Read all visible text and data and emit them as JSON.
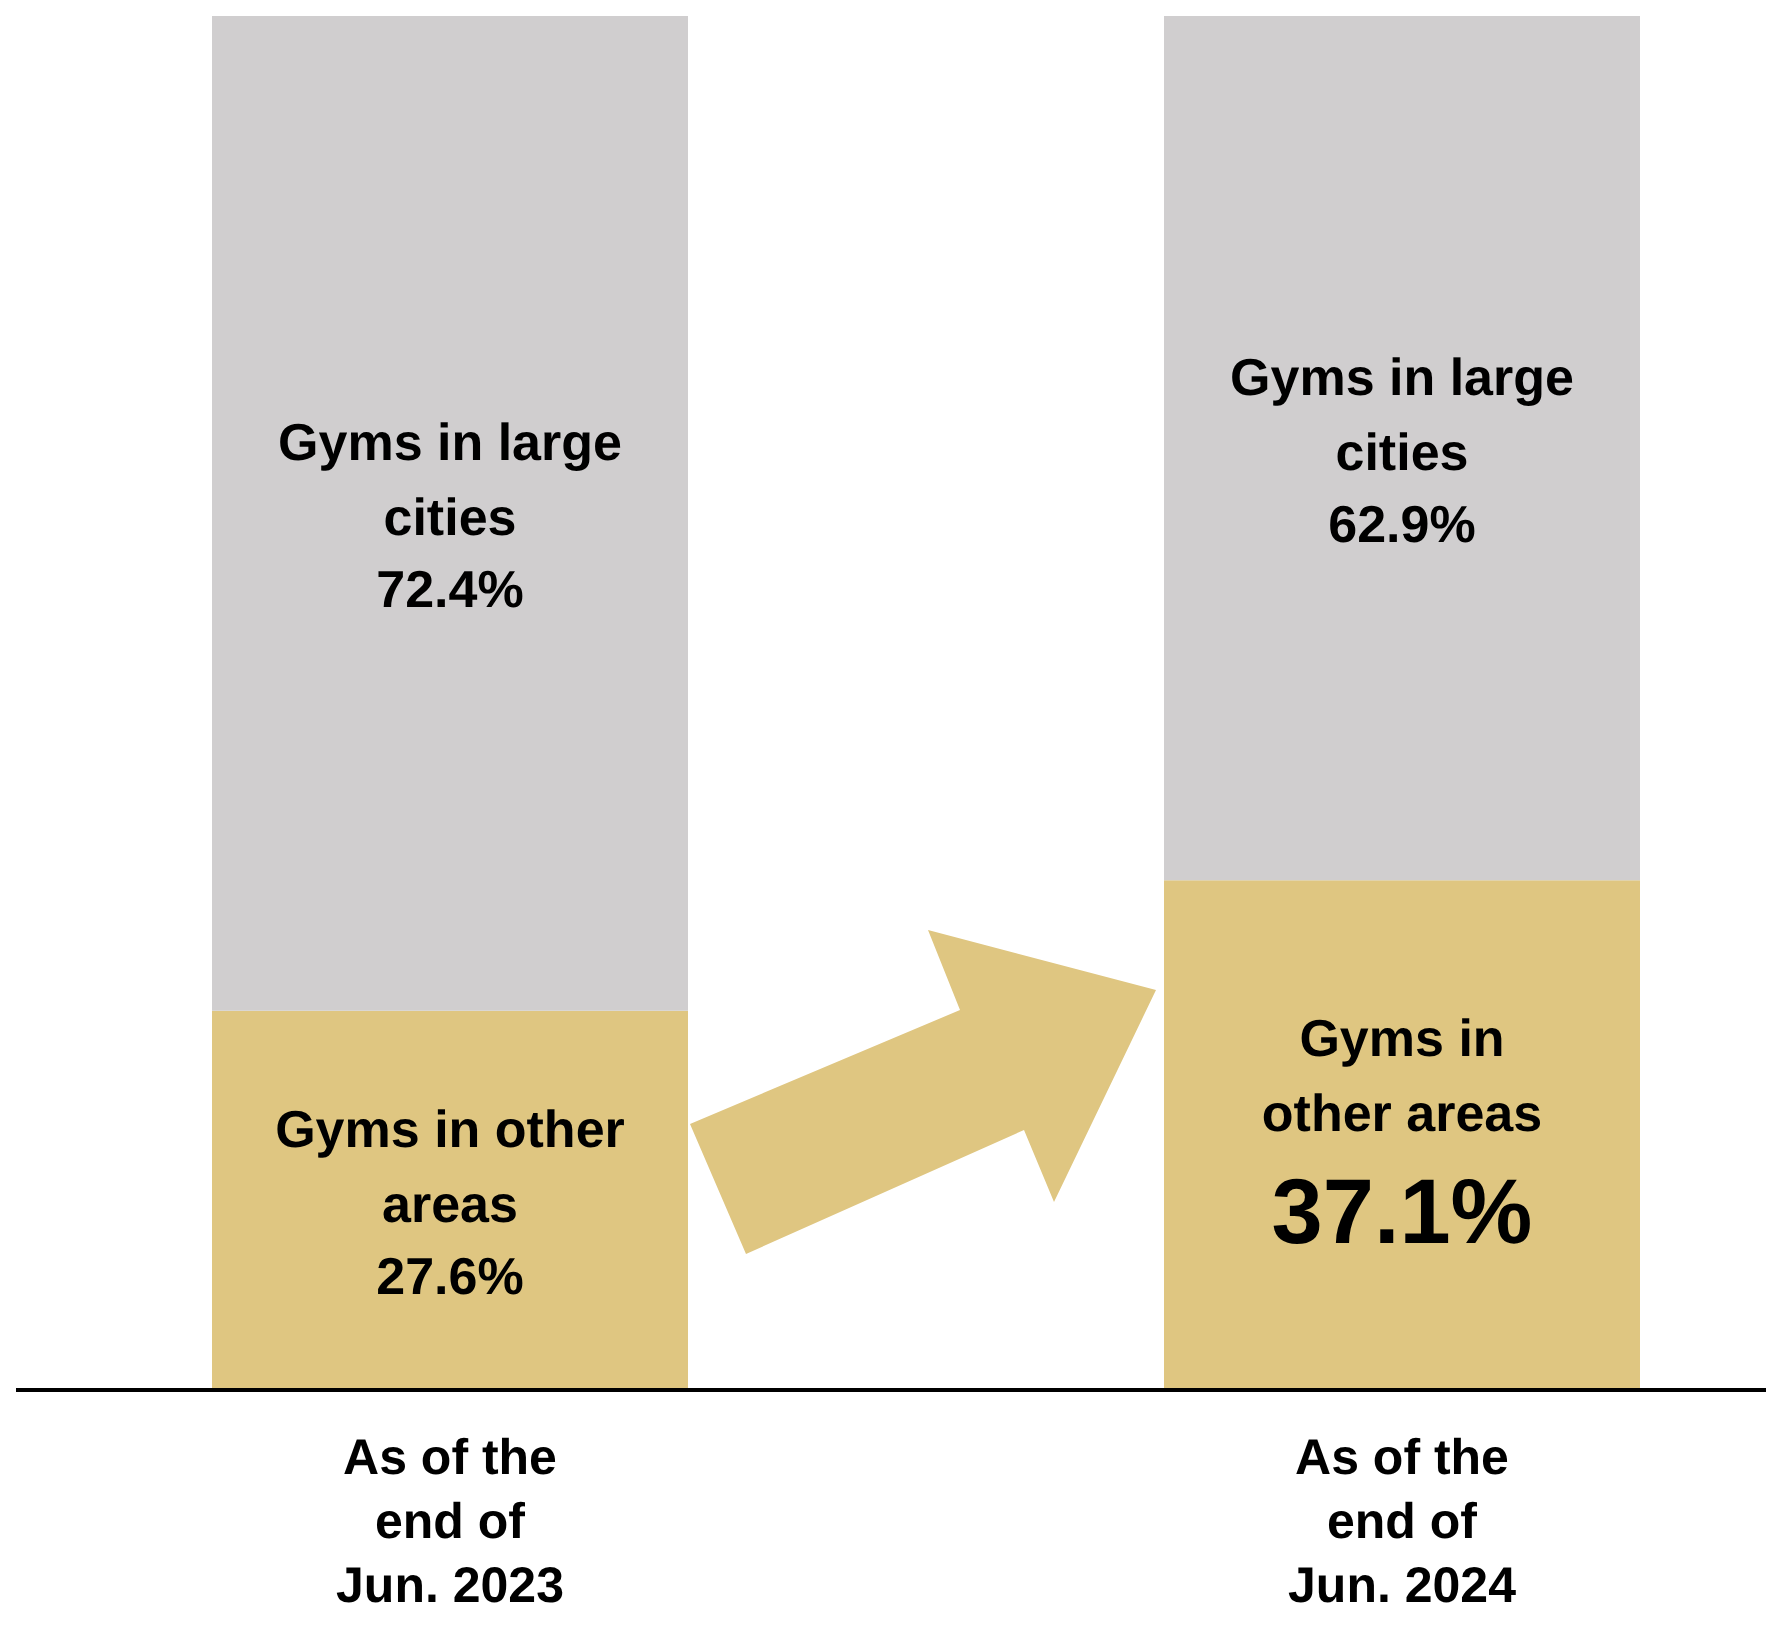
{
  "chart_data": {
    "type": "bar",
    "stacked": true,
    "categories": [
      "As of the end of Jun. 2023",
      "As of the end of Jun. 2024"
    ],
    "series": [
      {
        "name": "Gyms in other areas",
        "color": "#dfc681",
        "values": [
          27.6,
          37.1
        ],
        "value_labels": [
          "27.6%",
          "37.1%"
        ]
      },
      {
        "name": "Gyms in large cities",
        "color": "#d0cecf",
        "values": [
          72.4,
          62.9
        ],
        "value_labels": [
          "72.4%",
          "62.9%"
        ]
      }
    ],
    "ylim": [
      0,
      100
    ],
    "tick_labels": "x",
    "legend": false,
    "grid": false
  }
}
